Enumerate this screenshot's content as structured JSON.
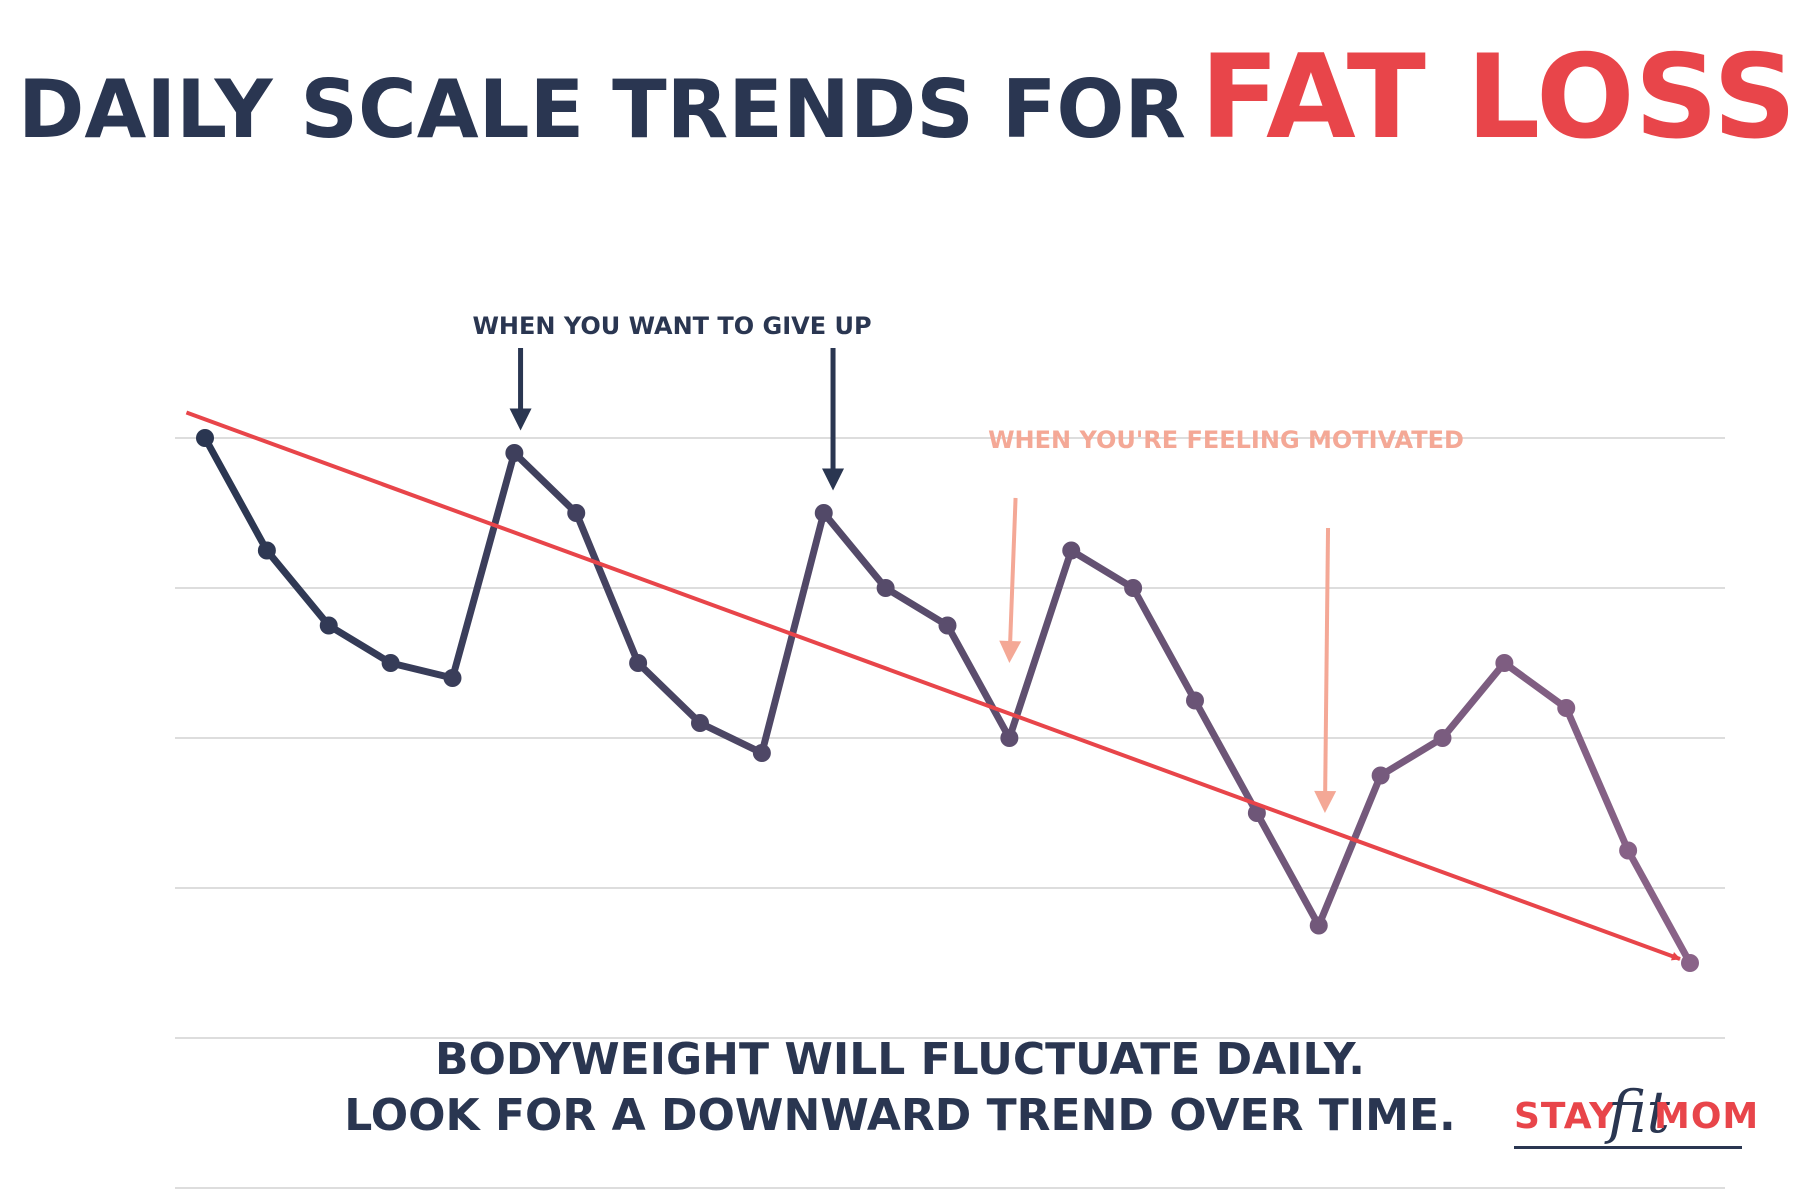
{
  "title": {
    "main": "DAILY SCALE TRENDS FOR",
    "accent": "FAT LOSS"
  },
  "annotations": {
    "give_up": "WHEN YOU WANT TO GIVE UP",
    "motivated": "WHEN YOU'RE FEELING MOTIVATED"
  },
  "caption": {
    "line1": "BODYWEIGHT WILL FLUCTUATE DAILY.",
    "line2": "LOOK FOR A DOWNWARD TREND OVER TIME."
  },
  "logo": {
    "part1": "STAY",
    "part2": "fit",
    "part3": "MOM"
  },
  "colors": {
    "navy": "#2a3651",
    "red": "#e8454a",
    "salmon": "#f4a896",
    "grid": "#dddddd",
    "series_start": "#2a3651",
    "series_end": "#8a6388"
  },
  "chart_data": {
    "type": "line",
    "title": "",
    "xlabel": "",
    "ylabel": "",
    "grid": true,
    "gridlines": 6,
    "ylim": [
      0,
      5
    ],
    "xlim": [
      0,
      24
    ],
    "series": [
      {
        "x": [
          0,
          1,
          2,
          3,
          4,
          5,
          6,
          7,
          8,
          9,
          10,
          11,
          12,
          13,
          14,
          15,
          16,
          17,
          18,
          19,
          20,
          21,
          22,
          23,
          24
        ],
        "values": [
          5.0,
          4.25,
          3.75,
          3.5,
          3.4,
          4.9,
          4.5,
          3.5,
          3.1,
          2.9,
          4.5,
          4.0,
          3.75,
          3.0,
          4.25,
          4.0,
          3.25,
          2.5,
          1.75,
          2.75,
          3.0,
          3.5,
          3.2,
          2.25,
          1.5
        ]
      }
    ],
    "trend": {
      "x": [
        -0.3,
        24
      ],
      "values": [
        5.17,
        1.5
      ]
    },
    "annotation_arrows": [
      {
        "label": "give_up",
        "x": 5.1,
        "y_from": 5.6,
        "y_to": 5.05
      },
      {
        "label": "give_up",
        "x": 10.15,
        "y_from": 5.6,
        "y_to": 4.65
      },
      {
        "label": "motivated",
        "x": 13.1,
        "x_to": 13.0,
        "y_from": 4.6,
        "y_to": 3.5
      },
      {
        "label": "motivated",
        "x": 18.15,
        "x_to": 18.1,
        "y_from": 4.4,
        "y_to": 2.5
      }
    ]
  }
}
